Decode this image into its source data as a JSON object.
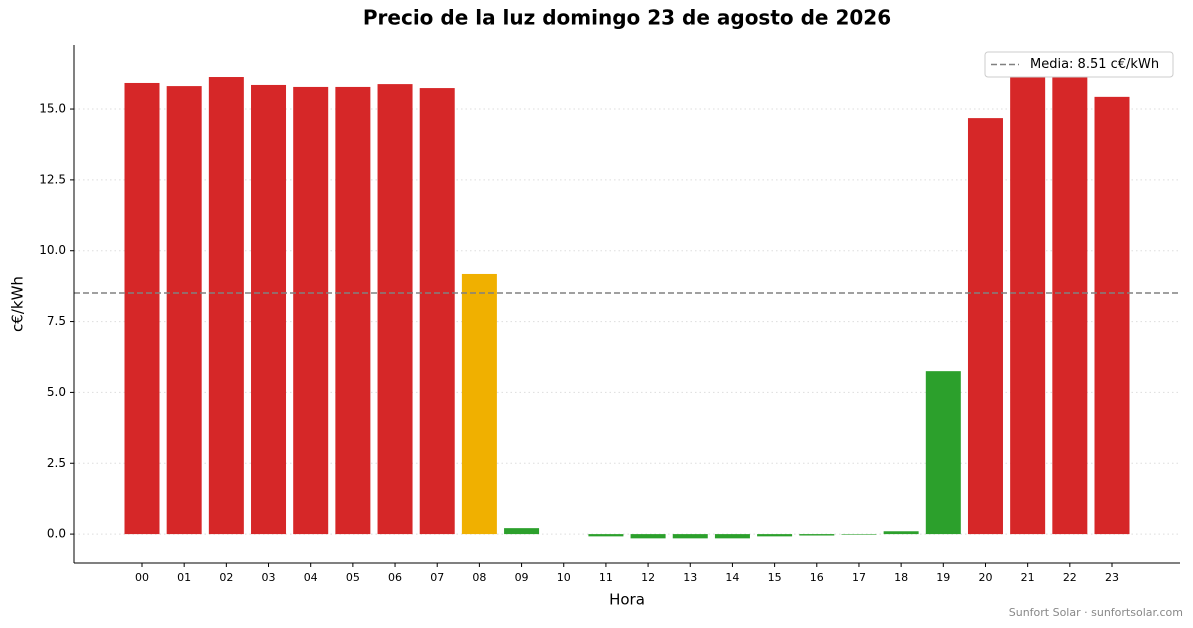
{
  "chart_data": {
    "type": "bar",
    "title": "Precio de la luz domingo 23 de agosto de 2026",
    "x_label": "Hora",
    "y_label": "c€/kWh",
    "categories": [
      "00",
      "01",
      "02",
      "03",
      "04",
      "05",
      "06",
      "07",
      "08",
      "09",
      "10",
      "11",
      "12",
      "13",
      "14",
      "15",
      "16",
      "17",
      "18",
      "19",
      "20",
      "21",
      "22",
      "23"
    ],
    "values": [
      15.92,
      15.81,
      16.13,
      15.85,
      15.78,
      15.78,
      15.88,
      15.74,
      9.18,
      0.21,
      0.0,
      -0.08,
      -0.15,
      -0.15,
      -0.15,
      -0.08,
      -0.05,
      -0.02,
      0.1,
      5.75,
      14.68,
      16.38,
      16.24,
      15.43
    ],
    "colors": [
      "#d62728",
      "#d62728",
      "#d62728",
      "#d62728",
      "#d62728",
      "#d62728",
      "#d62728",
      "#d62728",
      "#f0b000",
      "#2ca02c",
      "#2ca02c",
      "#2ca02c",
      "#2ca02c",
      "#2ca02c",
      "#2ca02c",
      "#2ca02c",
      "#2ca02c",
      "#2ca02c",
      "#2ca02c",
      "#2ca02c",
      "#d62728",
      "#d62728",
      "#d62728",
      "#d62728"
    ],
    "mean": 8.51,
    "mean_label": "Media: 8.51 c€/kWh",
    "mean_color": "#808080",
    "ylim": [
      -1.02,
      17.26
    ],
    "yticks": [
      {
        "value": 0,
        "label": "0.0"
      },
      {
        "value": 2.5,
        "label": "2.5"
      },
      {
        "value": 5,
        "label": "5.0"
      },
      {
        "value": 7.5,
        "label": "7.5"
      },
      {
        "value": 10,
        "label": "10.0"
      },
      {
        "value": 12.5,
        "label": "12.5"
      },
      {
        "value": 15,
        "label": "15.0"
      }
    ],
    "grid": true,
    "legend": "upper right",
    "footer": "Sunfort Solar · sunfortsolar.com"
  }
}
